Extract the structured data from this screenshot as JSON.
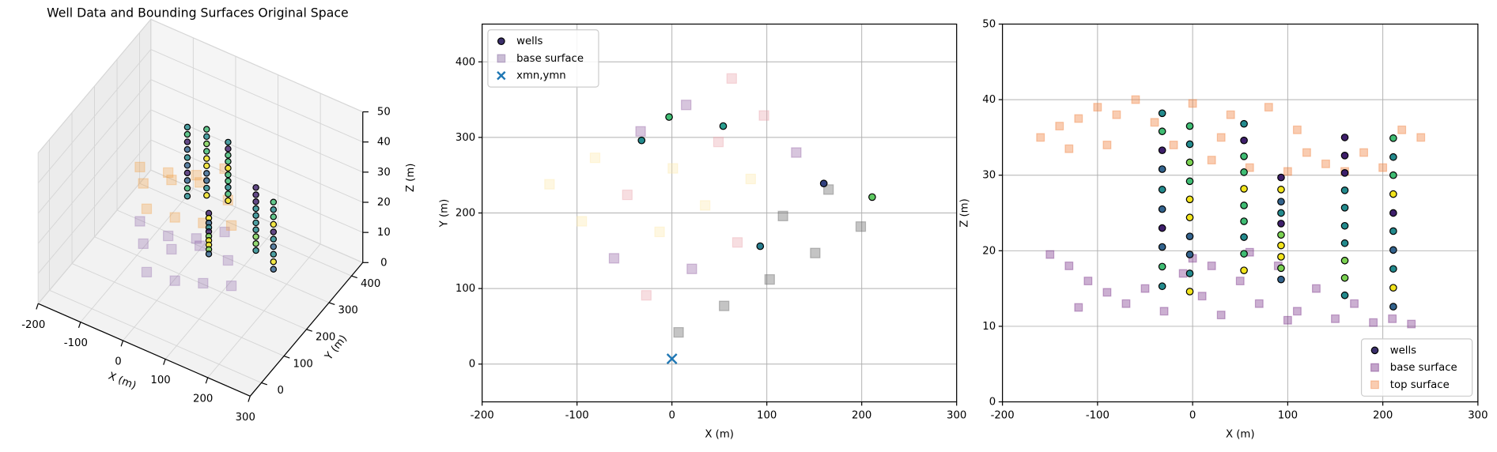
{
  "chart_data": [
    {
      "type": "scatter3d",
      "title": "Well Data and Bounding Surfaces Original Space",
      "xlabel": "X (m)",
      "ylabel": "Y (m)",
      "zlabel": "Z (m)",
      "xlim": [
        -200,
        300
      ],
      "ylim": [
        -50,
        450
      ],
      "zlim": [
        0,
        50
      ],
      "xticks": [
        -200,
        -100,
        0,
        100,
        200,
        300
      ],
      "yticks": [
        0,
        100,
        200,
        300,
        400
      ],
      "zticks": [
        0,
        10,
        20,
        30,
        40,
        50
      ],
      "grid": true,
      "series": [
        {
          "name": "base surface",
          "marker": "s",
          "color": "#7b4a9a",
          "alpha": 0.25,
          "x": [
            7,
            -27,
            -61,
            55,
            21,
            -13,
            103,
            69,
            35,
            151,
            117,
            83
          ],
          "y": [
            42,
            91,
            140,
            77,
            126,
            175,
            112,
            161,
            210,
            147,
            196,
            245
          ],
          "z": [
            15,
            18,
            19,
            12,
            16,
            14,
            11,
            17,
            13,
            10,
            12,
            15
          ]
        },
        {
          "name": "top surface",
          "marker": "s",
          "color": "#f39b3a",
          "alpha": 0.3,
          "x": [
            7,
            -27,
            -61,
            55,
            21,
            -13,
            103,
            69,
            35,
            151,
            117,
            83
          ],
          "y": [
            42,
            91,
            140,
            77,
            126,
            175,
            112,
            161,
            210,
            147,
            196,
            245
          ],
          "z": [
            36,
            38,
            37,
            33,
            39,
            35,
            31,
            38,
            34,
            30,
            32,
            36
          ]
        },
        {
          "name": "wells",
          "marker": "o",
          "color": "#3b2f6b",
          "alpha": 0.8,
          "x": [
            -32,
            -32,
            -32,
            -32,
            -32,
            -32,
            -32,
            -32,
            -32,
            -32,
            -3,
            -3,
            -3,
            -3,
            -3,
            -3,
            -3,
            -3,
            -3,
            -3,
            54,
            54,
            54,
            54,
            54,
            54,
            54,
            54,
            54,
            54,
            93,
            93,
            93,
            93,
            93,
            93,
            93,
            93,
            93,
            93,
            160,
            160,
            160,
            160,
            160,
            160,
            160,
            160,
            160,
            160,
            211,
            211,
            211,
            211,
            211,
            211,
            211,
            211,
            211,
            211
          ],
          "y": [
            296,
            296,
            296,
            296,
            296,
            296,
            296,
            296,
            296,
            296,
            327,
            327,
            327,
            327,
            327,
            327,
            327,
            327,
            327,
            327,
            315,
            315,
            315,
            315,
            315,
            315,
            315,
            315,
            315,
            315,
            156,
            156,
            156,
            156,
            156,
            156,
            156,
            156,
            156,
            156,
            239,
            239,
            239,
            239,
            239,
            239,
            239,
            239,
            239,
            239,
            221,
            221,
            221,
            221,
            221,
            221,
            221,
            221,
            221,
            221
          ],
          "z": [
            38.2,
            35.8,
            33.3,
            30.8,
            28.1,
            25.5,
            23.0,
            20.5,
            17.9,
            15.3,
            36.5,
            34.1,
            31.7,
            29.2,
            26.8,
            24.4,
            21.9,
            19.5,
            17.0,
            14.6,
            36.8,
            34.6,
            32.5,
            30.4,
            28.2,
            26.0,
            23.9,
            21.8,
            19.6,
            17.4,
            29.7,
            28.1,
            26.5,
            25.0,
            23.6,
            22.1,
            20.7,
            19.2,
            17.7,
            16.2,
            35.0,
            32.6,
            30.3,
            28.0,
            25.7,
            23.3,
            21.0,
            18.7,
            16.4,
            14.1,
            34.9,
            32.4,
            30.0,
            27.5,
            25.0,
            22.6,
            20.1,
            17.6,
            15.1,
            12.6
          ],
          "colors": [
            "#238a8d",
            "#3fbc73",
            "#3e1f6b",
            "#33638d",
            "#238a8d",
            "#33638d",
            "#3e1f6b",
            "#33638d",
            "#3fbc73",
            "#238a8d",
            "#3fbc73",
            "#238a8d",
            "#7ad151",
            "#3fbc73",
            "#f2e41c",
            "#f2e41c",
            "#33638d",
            "#33638d",
            "#238a8d",
            "#f2e41c",
            "#238a8d",
            "#3e1f6b",
            "#3fbc73",
            "#3fbc73",
            "#f2e41c",
            "#3fbc73",
            "#3fbc73",
            "#238a8d",
            "#3fbc73",
            "#f2e41c",
            "#3e1f6b",
            "#f2e41c",
            "#33638d",
            "#238a8d",
            "#3e1f6b",
            "#7ad151",
            "#f2e41c",
            "#f2e41c",
            "#7ad151",
            "#33638d",
            "#3e1f6b",
            "#3e1f6b",
            "#3e1f6b",
            "#238a8d",
            "#238a8d",
            "#238a8d",
            "#238a8d",
            "#7ad151",
            "#7ad151",
            "#238a8d",
            "#3fbc73",
            "#238a8d",
            "#3fbc73",
            "#f2e41c",
            "#3e1f6b",
            "#238a8d",
            "#33638d",
            "#238a8d",
            "#f2e41c",
            "#33638d"
          ]
        }
      ]
    },
    {
      "type": "scatter",
      "xlabel": "X (m)",
      "ylabel": "Y (m)",
      "xlim": [
        -200,
        300
      ],
      "ylim": [
        -50,
        450
      ],
      "xticks": [
        -200,
        -100,
        0,
        100,
        200,
        300
      ],
      "yticks": [
        0,
        100,
        200,
        300,
        400
      ],
      "grid": true,
      "legend": "upper left",
      "series": [
        {
          "name": "wells",
          "marker": "o",
          "color": "#3b2f6b",
          "alpha": 1,
          "x": [
            -3,
            -32,
            54,
            160,
            211,
            93
          ],
          "y": [
            327,
            296,
            315,
            239,
            221,
            156
          ],
          "colors": [
            "#3fbc73",
            "#238a8d",
            "#2a9d8f",
            "#31407e",
            "#5ec962",
            "#287d8e"
          ]
        },
        {
          "name": "base surface",
          "marker": "s",
          "color": "#7b5a96",
          "alpha": 0.35,
          "x": [
            7,
            -27,
            -61,
            -95,
            -129,
            55,
            21,
            -13,
            -47,
            -81,
            103,
            69,
            35,
            1,
            -33,
            151,
            117,
            83,
            49,
            15,
            199,
            165,
            131,
            97,
            63
          ],
          "y": [
            42,
            91,
            140,
            189,
            238,
            77,
            126,
            175,
            224,
            273,
            112,
            161,
            210,
            259,
            308,
            147,
            196,
            245,
            294,
            343,
            182,
            231,
            280,
            329,
            378
          ],
          "colors": [
            "#555555",
            "#e8a0a8",
            "#8c5a9e",
            "#fde9a9",
            "#fde9a9",
            "#555555",
            "#8c5a9e",
            "#fde9a9",
            "#e8a0a8",
            "#fde9a9",
            "#555555",
            "#e8a0a8",
            "#fde9a9",
            "#fde9a9",
            "#8c5a9e",
            "#555555",
            "#555555",
            "#fde9a9",
            "#e8a0a8",
            "#8c5a9e",
            "#555555",
            "#555555",
            "#8c5a9e",
            "#e8a0a8",
            "#e8a0a8"
          ]
        },
        {
          "name": "xmn,ymn",
          "marker": "x",
          "color": "#1f77b4",
          "alpha": 1,
          "x": [
            0
          ],
          "y": [
            7
          ]
        }
      ]
    },
    {
      "type": "scatter",
      "xlabel": "X (m)",
      "ylabel": "Z (m)",
      "xlim": [
        -200,
        300
      ],
      "ylim": [
        0,
        50
      ],
      "xticks": [
        -200,
        -100,
        0,
        100,
        200,
        300
      ],
      "yticks": [
        0,
        10,
        20,
        30,
        40,
        50
      ],
      "grid": true,
      "legend": "lower right",
      "series": [
        {
          "name": "wells",
          "marker": "o",
          "color": "#3b2f6b",
          "alpha": 1,
          "x": [
            -32,
            -32,
            -32,
            -32,
            -32,
            -32,
            -32,
            -32,
            -32,
            -32,
            -3,
            -3,
            -3,
            -3,
            -3,
            -3,
            -3,
            -3,
            -3,
            -3,
            54,
            54,
            54,
            54,
            54,
            54,
            54,
            54,
            54,
            54,
            93,
            93,
            93,
            93,
            93,
            93,
            93,
            93,
            93,
            93,
            160,
            160,
            160,
            160,
            160,
            160,
            160,
            160,
            160,
            160,
            211,
            211,
            211,
            211,
            211,
            211,
            211,
            211,
            211,
            211
          ],
          "y": [
            38.2,
            35.8,
            33.3,
            30.8,
            28.1,
            25.5,
            23.0,
            20.5,
            17.9,
            15.3,
            36.5,
            34.1,
            31.7,
            29.2,
            26.8,
            24.4,
            21.9,
            19.5,
            17.0,
            14.6,
            36.8,
            34.6,
            32.5,
            30.4,
            28.2,
            26.0,
            23.9,
            21.8,
            19.6,
            17.4,
            29.7,
            28.1,
            26.5,
            25.0,
            23.6,
            22.1,
            20.7,
            19.2,
            17.7,
            16.2,
            35.0,
            32.6,
            30.3,
            28.0,
            25.7,
            23.3,
            21.0,
            18.7,
            16.4,
            14.1,
            34.9,
            32.4,
            30.0,
            27.5,
            25.0,
            22.6,
            20.1,
            17.6,
            15.1,
            12.6
          ],
          "colors": [
            "#238a8d",
            "#3fbc73",
            "#3e1f6b",
            "#33638d",
            "#238a8d",
            "#33638d",
            "#3e1f6b",
            "#33638d",
            "#3fbc73",
            "#238a8d",
            "#3fbc73",
            "#238a8d",
            "#7ad151",
            "#3fbc73",
            "#f2e41c",
            "#f2e41c",
            "#33638d",
            "#33638d",
            "#238a8d",
            "#f2e41c",
            "#238a8d",
            "#3e1f6b",
            "#3fbc73",
            "#3fbc73",
            "#f2e41c",
            "#3fbc73",
            "#3fbc73",
            "#238a8d",
            "#3fbc73",
            "#f2e41c",
            "#3e1f6b",
            "#f2e41c",
            "#33638d",
            "#238a8d",
            "#3e1f6b",
            "#7ad151",
            "#f2e41c",
            "#f2e41c",
            "#7ad151",
            "#33638d",
            "#3e1f6b",
            "#3e1f6b",
            "#3e1f6b",
            "#238a8d",
            "#238a8d",
            "#238a8d",
            "#238a8d",
            "#7ad151",
            "#7ad151",
            "#238a8d",
            "#3fbc73",
            "#238a8d",
            "#3fbc73",
            "#f2e41c",
            "#3e1f6b",
            "#238a8d",
            "#33638d",
            "#238a8d",
            "#f2e41c",
            "#33638d"
          ]
        },
        {
          "name": "base surface",
          "marker": "s",
          "color": "#6a1b7a",
          "alpha": 0.35,
          "x": [
            -150,
            -130,
            -110,
            -90,
            -70,
            -50,
            -30,
            -10,
            10,
            30,
            50,
            70,
            90,
            110,
            130,
            150,
            170,
            190,
            210,
            230,
            -120,
            0,
            60,
            100,
            20
          ],
          "y": [
            19.5,
            18,
            16,
            14.5,
            13,
            15,
            12,
            17,
            14,
            11.5,
            16,
            13,
            18,
            12,
            15,
            11,
            13,
            10.5,
            11,
            10.3,
            12.5,
            19,
            19.8,
            10.8,
            18
          ]
        },
        {
          "name": "top surface",
          "marker": "s",
          "color": "#f07f3c",
          "alpha": 0.4,
          "x": [
            -160,
            -140,
            -120,
            -100,
            -80,
            -60,
            -40,
            -20,
            0,
            20,
            40,
            60,
            80,
            100,
            120,
            140,
            160,
            180,
            200,
            220,
            240,
            -90,
            30,
            110,
            -130
          ],
          "y": [
            35,
            36.5,
            37.5,
            39,
            38,
            40,
            37,
            34,
            39.5,
            32,
            38,
            31,
            39,
            30.5,
            33,
            31.5,
            30.5,
            33,
            31,
            36,
            35,
            34,
            35,
            36,
            33.5
          ]
        }
      ]
    }
  ]
}
